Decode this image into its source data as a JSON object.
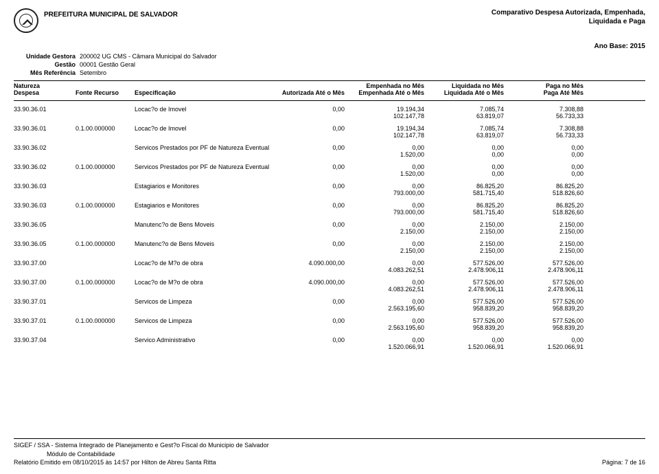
{
  "header": {
    "org_name": "PREFEITURA MUNICIPAL DE SALVADOR",
    "report_title_line1": "Comparativo Despesa Autorizada, Empenhada,",
    "report_title_line2": "Liquidada e Paga"
  },
  "meta": {
    "ano_base": "Ano Base: 2015",
    "unidade_label": "Unidade Gestora",
    "unidade_value": "200002 UG CMS - Câmara Municipal do Salvador",
    "gestao_label": "Gestão",
    "gestao_value": "00001   Gestão Geral",
    "mesref_label": "Mês Referência",
    "mesref_value": "Setembro"
  },
  "columns": {
    "natureza": "Natureza",
    "despesa": "Despesa",
    "fonte_recurso": "Fonte Recurso",
    "especificacao": "Especificação",
    "autorizada": "Autorizada Até o Mês",
    "emp_mes": "Empenhada no Mês",
    "emp_ate": "Empenhada Até o Mês",
    "liq_mes": "Liquidada no Mês",
    "liq_ate": "Liquidada Até o Mês",
    "paga_mes": "Paga no Mês",
    "paga_ate": "Paga Até Mês"
  },
  "rows": [
    {
      "cod": "33.90.36.01",
      "fr": "",
      "desc": "Locac?o de Imovel",
      "aut": "0,00",
      "emp1": "19.194,34",
      "emp2": "102.147,78",
      "liq1": "7.085,74",
      "liq2": "63.819,07",
      "pag1": "7.308,88",
      "pag2": "56.733,33"
    },
    {
      "cod": "33.90.36.01",
      "fr": "0.1.00.000000",
      "desc": "Locac?o de Imovel",
      "aut": "0,00",
      "emp1": "19.194,34",
      "emp2": "102.147,78",
      "liq1": "7.085,74",
      "liq2": "63.819,07",
      "pag1": "7.308,88",
      "pag2": "56.733,33"
    },
    {
      "cod": "33.90.36.02",
      "fr": "",
      "desc": "Servicos Prestados por PF de Natureza Eventual",
      "aut": "0,00",
      "emp1": "0,00",
      "emp2": "1.520,00",
      "liq1": "0,00",
      "liq2": "0,00",
      "pag1": "0,00",
      "pag2": "0,00"
    },
    {
      "cod": "33.90.36.02",
      "fr": "0.1.00.000000",
      "desc": "Servicos Prestados por PF de Natureza Eventual",
      "aut": "0,00",
      "emp1": "0,00",
      "emp2": "1.520,00",
      "liq1": "0,00",
      "liq2": "0,00",
      "pag1": "0,00",
      "pag2": "0,00"
    },
    {
      "cod": "33.90.36.03",
      "fr": "",
      "desc": "Estagiarios e Monitores",
      "aut": "0,00",
      "emp1": "0,00",
      "emp2": "793.000,00",
      "liq1": "86.825,20",
      "liq2": "581.715,40",
      "pag1": "86.825,20",
      "pag2": "518.826,60"
    },
    {
      "cod": "33.90.36.03",
      "fr": "0.1.00.000000",
      "desc": "Estagiarios e Monitores",
      "aut": "0,00",
      "emp1": "0,00",
      "emp2": "793.000,00",
      "liq1": "86.825,20",
      "liq2": "581.715,40",
      "pag1": "86.825,20",
      "pag2": "518.826,60"
    },
    {
      "cod": "33.90.36.05",
      "fr": "",
      "desc": "Manutenc?o de Bens Moveis",
      "aut": "0,00",
      "emp1": "0,00",
      "emp2": "2.150,00",
      "liq1": "2.150,00",
      "liq2": "2.150,00",
      "pag1": "2.150,00",
      "pag2": "2.150,00"
    },
    {
      "cod": "33.90.36.05",
      "fr": "0.1.00.000000",
      "desc": "Manutenc?o de Bens Moveis",
      "aut": "0,00",
      "emp1": "0,00",
      "emp2": "2.150,00",
      "liq1": "2.150,00",
      "liq2": "2.150,00",
      "pag1": "2.150,00",
      "pag2": "2.150,00"
    },
    {
      "cod": "33.90.37.00",
      "fr": "",
      "desc": "Locac?o de M?o de obra",
      "aut": "4.090.000,00",
      "emp1": "0,00",
      "emp2": "4.083.262,51",
      "liq1": "577.526,00",
      "liq2": "2.478.906,11",
      "pag1": "577.526,00",
      "pag2": "2.478.906,11"
    },
    {
      "cod": "33.90.37.00",
      "fr": "0.1.00.000000",
      "desc": "Locac?o de M?o de obra",
      "aut": "4.090.000,00",
      "emp1": "0,00",
      "emp2": "4.083.262,51",
      "liq1": "577.526,00",
      "liq2": "2.478.906,11",
      "pag1": "577.526,00",
      "pag2": "2.478.906,11"
    },
    {
      "cod": "33.90.37.01",
      "fr": "",
      "desc": "Servicos de Limpeza",
      "aut": "0,00",
      "emp1": "0,00",
      "emp2": "2.563.195,60",
      "liq1": "577.526,00",
      "liq2": "958.839,20",
      "pag1": "577.526,00",
      "pag2": "958.839,20"
    },
    {
      "cod": "33.90.37.01",
      "fr": "0.1.00.000000",
      "desc": "Servicos de Limpeza",
      "aut": "0,00",
      "emp1": "0,00",
      "emp2": "2.563.195,60",
      "liq1": "577.526,00",
      "liq2": "958.839,20",
      "pag1": "577.526,00",
      "pag2": "958.839,20"
    },
    {
      "cod": "33.90.37.04",
      "fr": "",
      "desc": "Servico Administrativo",
      "aut": "0,00",
      "emp1": "0,00",
      "emp2": "1.520.066,91",
      "liq1": "0,00",
      "liq2": "1.520.066,91",
      "pag1": "0,00",
      "pag2": "1.520.066,91"
    }
  ],
  "footer": {
    "line1": "SIGEF / SSA - Sistema Integrado de Planejamento e Gest?o Fiscal do Municipio de Salvador",
    "line2": "Módulo de Contabilidade",
    "line3_left": "Relatório Emitido em 08/10/2015 às 14:57 por Hilton de Abreu Santa Ritta",
    "line3_right": "Página: 7 de 16"
  }
}
